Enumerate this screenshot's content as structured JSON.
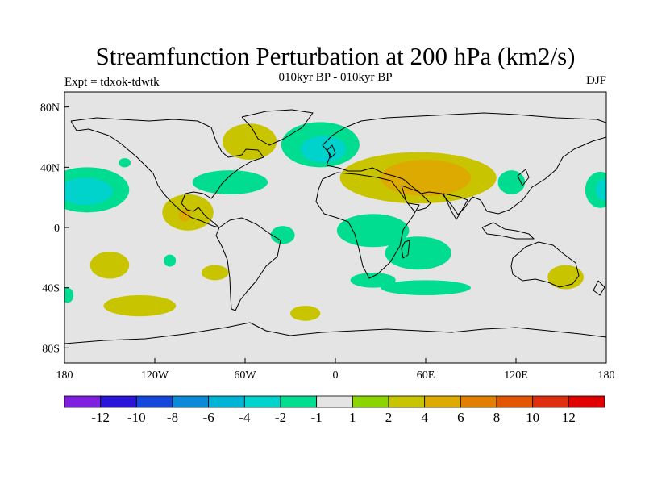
{
  "header": {
    "title": "Streamfunction Perturbation at 200 hPa (km2/s)",
    "subtitle": "010kyr BP - 010kyr BP",
    "experiment": "Expt = tdxok-tdwtk",
    "season": "DJF"
  },
  "axes": {
    "x_ticks": [
      "180",
      "120W",
      "60W",
      "0",
      "60E",
      "120E",
      "180"
    ],
    "y_ticks": [
      "80N",
      "40N",
      "0",
      "40S",
      "80S"
    ]
  },
  "colorbar": {
    "colors": [
      "#7f1fe0",
      "#2a14d8",
      "#1448d8",
      "#0a8ad8",
      "#00b4d6",
      "#00d2cc",
      "#00dc90",
      "#e4e4e4",
      "#8cd400",
      "#c8c400",
      "#dcaa00",
      "#e27e00",
      "#e25600",
      "#e02e10",
      "#e00000"
    ],
    "labels": [
      "-12",
      "-10",
      "-8",
      "-6",
      "-4",
      "-2",
      "-1",
      "1",
      "2",
      "4",
      "6",
      "8",
      "10",
      "12"
    ]
  },
  "map": {
    "ocean_color": "#e4e4e4",
    "coast_color": "#000000"
  },
  "chart_data": {
    "type": "heatmap",
    "title": "Streamfunction Perturbation at 200 hPa (km2/s)",
    "subtitle": "010kyr BP - 010kyr BP",
    "levels": [
      -12,
      -10,
      -8,
      -6,
      -4,
      -2,
      -1,
      1,
      2,
      4,
      6,
      8,
      10,
      12
    ],
    "xlim": [
      -180,
      180
    ],
    "ylim": [
      -90,
      90
    ],
    "regions": [
      {
        "name": "east-atlantic-europe-negative",
        "value": -2,
        "lon": -10,
        "lat": 55,
        "rlon": 26,
        "rlat": 15
      },
      {
        "name": "east-atlantic-core",
        "value": -4,
        "lon": -8,
        "lat": 52,
        "rlon": 15,
        "rlat": 9
      },
      {
        "name": "north-pacific-negative",
        "value": -2,
        "lon": -165,
        "lat": 25,
        "rlon": 28,
        "rlat": 15
      },
      {
        "name": "north-pacific-core",
        "value": -4,
        "lon": -166,
        "lat": 24,
        "rlon": 18,
        "rlat": 9
      },
      {
        "name": "date-line-east-negative",
        "value": -2,
        "lon": 176,
        "lat": 25,
        "rlon": 10,
        "rlat": 12
      },
      {
        "name": "date-line-east-core",
        "value": -4,
        "lon": 178,
        "lat": 25,
        "rlon": 5,
        "rlat": 7
      },
      {
        "name": "west-atlantic-negative",
        "value": -2,
        "lon": -70,
        "lat": 30,
        "rlon": 25,
        "rlat": 8
      },
      {
        "name": "west-pacific-negative",
        "value": -2,
        "lon": 117,
        "lat": 30,
        "rlon": 9,
        "rlat": 8
      },
      {
        "name": "africa-negative",
        "value": -2,
        "lon": 25,
        "lat": -2,
        "rlon": 24,
        "rlat": 11
      },
      {
        "name": "indian-ocean-negative",
        "value": -2,
        "lon": 55,
        "lat": -17,
        "rlon": 22,
        "rlat": 11
      },
      {
        "name": "south-atlantic-negative",
        "value": -2,
        "lon": 25,
        "lat": -35,
        "rlon": 15,
        "rlat": 5
      },
      {
        "name": "south-america-negative",
        "value": -2,
        "lon": -35,
        "lat": -5,
        "rlon": 8,
        "rlat": 6
      },
      {
        "name": "southwest-indian-negative",
        "value": -2,
        "lon": 60,
        "lat": -40,
        "rlon": 30,
        "rlat": 5
      },
      {
        "name": "south-pacific-negative",
        "value": -2,
        "lon": -110,
        "lat": -22,
        "rlon": 4,
        "rlat": 4
      },
      {
        "name": "north-pacific-small-negative",
        "value": -2,
        "lon": -140,
        "lat": 43,
        "rlon": 4,
        "rlat": 3
      },
      {
        "name": "east-pacific-west-negative",
        "value": -2,
        "lon": -178,
        "lat": -45,
        "rlon": 4,
        "rlat": 5
      },
      {
        "name": "eurasia-positive",
        "value": 2,
        "lon": 55,
        "lat": 33,
        "rlon": 52,
        "rlat": 17
      },
      {
        "name": "eurasia-core",
        "value": 4,
        "lon": 60,
        "lat": 33,
        "rlon": 30,
        "rlat": 12
      },
      {
        "name": "north-america-positive",
        "value": 2,
        "lon": -57,
        "lat": 57,
        "rlon": 18,
        "rlat": 12
      },
      {
        "name": "central-america-positive",
        "value": 2,
        "lon": -98,
        "lat": 10,
        "rlon": 17,
        "rlat": 12
      },
      {
        "name": "central-america-core",
        "value": 4,
        "lon": -100,
        "lat": 8,
        "rlon": 4,
        "rlat": 4
      },
      {
        "name": "south-pacific-positive",
        "value": 2,
        "lon": -150,
        "lat": -25,
        "rlon": 13,
        "rlat": 9
      },
      {
        "name": "southeast-pacific-positive",
        "value": 2,
        "lon": -130,
        "lat": -52,
        "rlon": 24,
        "rlat": 7
      },
      {
        "name": "south-america-south-positive",
        "value": 2,
        "lon": -80,
        "lat": -30,
        "rlon": 9,
        "rlat": 5
      },
      {
        "name": "south-atlantic-positive",
        "value": 2,
        "lon": -20,
        "lat": -57,
        "rlon": 10,
        "rlat": 5
      },
      {
        "name": "australia-positive",
        "value": 2,
        "lon": 153,
        "lat": -33,
        "rlon": 12,
        "rlat": 8
      }
    ]
  }
}
